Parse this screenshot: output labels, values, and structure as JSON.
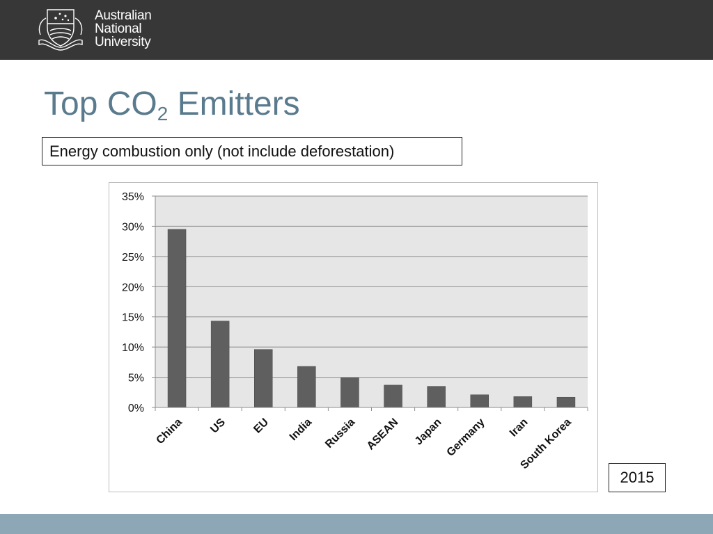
{
  "header": {
    "logo_lines": [
      "Australian",
      "National",
      "University"
    ]
  },
  "slide": {
    "title_main": "Top CO",
    "title_sub": "2",
    "title_end": " Emitters",
    "subtitle": "Energy combustion only (not include deforestation)",
    "year": "2015"
  },
  "colors": {
    "header_bg": "#373737",
    "title": "#5a7b8d",
    "bar": "#5f5f5f",
    "plot_bg": "#e6e6e6",
    "footer": "#8ea7b6"
  },
  "chart_data": {
    "type": "bar",
    "title": "",
    "xlabel": "",
    "ylabel": "",
    "categories": [
      "China",
      "US",
      "EU",
      "India",
      "Russia",
      "ASEAN",
      "Japan",
      "Germany",
      "Iran",
      "South Korea"
    ],
    "values": [
      0.295,
      0.143,
      0.096,
      0.068,
      0.049,
      0.037,
      0.035,
      0.021,
      0.018,
      0.017
    ],
    "ylim": [
      0,
      0.35
    ],
    "yticks": [
      0,
      0.05,
      0.1,
      0.15,
      0.2,
      0.25,
      0.3,
      0.35
    ],
    "ytick_labels": [
      "0%",
      "5%",
      "10%",
      "15%",
      "20%",
      "25%",
      "30%",
      "35%"
    ],
    "grid": true,
    "legend": "none"
  }
}
